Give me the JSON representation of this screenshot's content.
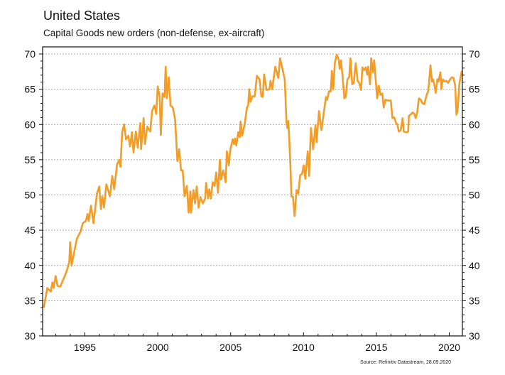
{
  "chart_data": {
    "type": "line",
    "title": "United States",
    "subtitle": "Capital Goods new orders (non-defense, ex-aircraft)",
    "xlabel": "",
    "ylabel": "",
    "source": "Source: Refinitiv Datastream, 28.09.2020",
    "xlim": [
      1992.1,
      2020.9
    ],
    "ylim": [
      30,
      70
    ],
    "x_ticks": [
      1995,
      2000,
      2005,
      2010,
      2015,
      2020
    ],
    "x_tick_labels": [
      "1995",
      "2000",
      "2005",
      "2010",
      "2015",
      "2020"
    ],
    "y_ticks": [
      30,
      35,
      40,
      45,
      50,
      55,
      60,
      65,
      70
    ],
    "y_tick_labels": [
      "30",
      "35",
      "40",
      "45",
      "50",
      "55",
      "60",
      "65",
      "70"
    ],
    "grid": "horizontal dashed",
    "legend": "none",
    "series": [
      {
        "name": "Capital Goods new orders (non-defense, ex-aircraft)",
        "color": "#f39c26",
        "points": [
          [
            1992.18,
            34.0
          ],
          [
            1992.42,
            36.8
          ],
          [
            1992.66,
            36.3
          ],
          [
            1992.77,
            37.6
          ],
          [
            1992.85,
            36.8
          ],
          [
            1992.99,
            38.5
          ],
          [
            1993.12,
            37.1
          ],
          [
            1993.31,
            37.0
          ],
          [
            1993.64,
            38.6
          ],
          [
            1993.8,
            39.5
          ],
          [
            1993.93,
            40.6
          ],
          [
            1993.99,
            43.3
          ],
          [
            1994.09,
            40.0
          ],
          [
            1994.26,
            41.8
          ],
          [
            1994.45,
            43.8
          ],
          [
            1994.7,
            44.8
          ],
          [
            1994.86,
            46.0
          ],
          [
            1995.07,
            46.3
          ],
          [
            1995.18,
            47.3
          ],
          [
            1995.26,
            46.3
          ],
          [
            1995.42,
            48.5
          ],
          [
            1995.59,
            46.0
          ],
          [
            1995.83,
            50.2
          ],
          [
            1995.99,
            51.2
          ],
          [
            1996.1,
            48.0
          ],
          [
            1996.2,
            49.8
          ],
          [
            1996.31,
            48.2
          ],
          [
            1996.47,
            51.5
          ],
          [
            1996.72,
            49.8
          ],
          [
            1996.88,
            52.7
          ],
          [
            1997.01,
            50.8
          ],
          [
            1997.2,
            54.3
          ],
          [
            1997.36,
            55.0
          ],
          [
            1997.44,
            54.0
          ],
          [
            1997.56,
            58.9
          ],
          [
            1997.69,
            60.0
          ],
          [
            1997.82,
            57.9
          ],
          [
            1997.98,
            58.4
          ],
          [
            1998.1,
            56.9
          ],
          [
            1998.23,
            58.9
          ],
          [
            1998.34,
            56.0
          ],
          [
            1998.5,
            59.0
          ],
          [
            1998.63,
            56.7
          ],
          [
            1998.8,
            60.2
          ],
          [
            1998.86,
            56.5
          ],
          [
            1999.03,
            60.9
          ],
          [
            1999.12,
            57.2
          ],
          [
            1999.28,
            59.7
          ],
          [
            1999.48,
            59.0
          ],
          [
            1999.61,
            61.9
          ],
          [
            1999.77,
            62.7
          ],
          [
            1999.89,
            61.5
          ],
          [
            2000.0,
            65.4
          ],
          [
            2000.13,
            63.9
          ],
          [
            2000.21,
            58.5
          ],
          [
            2000.33,
            64.4
          ],
          [
            2000.46,
            63.9
          ],
          [
            2000.54,
            68.2
          ],
          [
            2000.62,
            63.7
          ],
          [
            2000.75,
            66.7
          ],
          [
            2000.87,
            62.7
          ],
          [
            2001.03,
            62.4
          ],
          [
            2001.19,
            60.7
          ],
          [
            2001.35,
            54.8
          ],
          [
            2001.47,
            56.5
          ],
          [
            2001.6,
            53.5
          ],
          [
            2001.71,
            53.5
          ],
          [
            2001.84,
            49.8
          ],
          [
            2001.99,
            51.3
          ],
          [
            2002.12,
            47.5
          ],
          [
            2002.24,
            50.5
          ],
          [
            2002.28,
            47.5
          ],
          [
            2002.45,
            50.7
          ],
          [
            2002.56,
            48.8
          ],
          [
            2002.67,
            51.2
          ],
          [
            2002.8,
            48.2
          ],
          [
            2002.93,
            49.7
          ],
          [
            2003.09,
            48.8
          ],
          [
            2003.25,
            49.5
          ],
          [
            2003.32,
            51.7
          ],
          [
            2003.45,
            49.5
          ],
          [
            2003.53,
            50.8
          ],
          [
            2003.64,
            49.5
          ],
          [
            2003.77,
            51.8
          ],
          [
            2003.9,
            51.3
          ],
          [
            2004.01,
            53.2
          ],
          [
            2004.13,
            50.3
          ],
          [
            2004.26,
            55.0
          ],
          [
            2004.34,
            52.2
          ],
          [
            2004.5,
            53.5
          ],
          [
            2004.66,
            51.8
          ],
          [
            2004.74,
            56.2
          ],
          [
            2004.87,
            54.2
          ],
          [
            2004.98,
            56.5
          ],
          [
            2005.15,
            57.9
          ],
          [
            2005.23,
            57.2
          ],
          [
            2005.31,
            58.0
          ],
          [
            2005.39,
            57.0
          ],
          [
            2005.52,
            58.9
          ],
          [
            2005.63,
            58.2
          ],
          [
            2005.68,
            60.4
          ],
          [
            2005.79,
            58.4
          ],
          [
            2005.96,
            60.0
          ],
          [
            2006.12,
            62.4
          ],
          [
            2006.2,
            62.7
          ],
          [
            2006.28,
            65.0
          ],
          [
            2006.36,
            63.2
          ],
          [
            2006.49,
            64.0
          ],
          [
            2006.65,
            64.0
          ],
          [
            2006.8,
            66.9
          ],
          [
            2006.98,
            66.4
          ],
          [
            2007.11,
            64.0
          ],
          [
            2007.2,
            63.9
          ],
          [
            2007.3,
            67.1
          ],
          [
            2007.46,
            64.9
          ],
          [
            2007.66,
            65.0
          ],
          [
            2007.74,
            66.2
          ],
          [
            2007.85,
            65.0
          ],
          [
            2008.06,
            68.2
          ],
          [
            2008.27,
            66.6
          ],
          [
            2008.39,
            69.4
          ],
          [
            2008.55,
            67.9
          ],
          [
            2008.71,
            66.4
          ],
          [
            2008.83,
            60.5
          ],
          [
            2008.89,
            59.5
          ],
          [
            2008.96,
            60.5
          ],
          [
            2009.09,
            54.9
          ],
          [
            2009.17,
            49.8
          ],
          [
            2009.28,
            49.7
          ],
          [
            2009.39,
            47.0
          ],
          [
            2009.52,
            50.7
          ],
          [
            2009.64,
            50.2
          ],
          [
            2009.77,
            52.8
          ],
          [
            2009.9,
            53.0
          ],
          [
            2010.01,
            54.2
          ],
          [
            2010.12,
            52.3
          ],
          [
            2010.29,
            56.2
          ],
          [
            2010.38,
            52.7
          ],
          [
            2010.51,
            59.5
          ],
          [
            2010.66,
            56.5
          ],
          [
            2010.82,
            59.9
          ],
          [
            2010.9,
            57.5
          ],
          [
            2011.06,
            61.9
          ],
          [
            2011.23,
            59.2
          ],
          [
            2011.38,
            61.5
          ],
          [
            2011.54,
            63.9
          ],
          [
            2011.62,
            63.5
          ],
          [
            2011.75,
            64.7
          ],
          [
            2011.87,
            64.7
          ],
          [
            2011.95,
            67.6
          ],
          [
            2012.04,
            65.0
          ],
          [
            2012.15,
            68.7
          ],
          [
            2012.28,
            69.9
          ],
          [
            2012.41,
            69.2
          ],
          [
            2012.48,
            67.9
          ],
          [
            2012.57,
            69.1
          ],
          [
            2012.69,
            66.6
          ],
          [
            2012.8,
            63.7
          ],
          [
            2012.9,
            63.9
          ],
          [
            2013.01,
            66.4
          ],
          [
            2013.13,
            66.7
          ],
          [
            2013.22,
            69.4
          ],
          [
            2013.34,
            65.7
          ],
          [
            2013.45,
            65.9
          ],
          [
            2013.58,
            68.7
          ],
          [
            2013.71,
            66.2
          ],
          [
            2013.82,
            65.9
          ],
          [
            2013.95,
            64.9
          ],
          [
            2014.04,
            68.1
          ],
          [
            2014.15,
            67.7
          ],
          [
            2014.27,
            68.1
          ],
          [
            2014.37,
            67.1
          ],
          [
            2014.43,
            68.2
          ],
          [
            2014.56,
            65.7
          ],
          [
            2014.65,
            69.4
          ],
          [
            2014.76,
            67.4
          ],
          [
            2014.85,
            69.1
          ],
          [
            2014.97,
            65.9
          ],
          [
            2015.05,
            63.7
          ],
          [
            2015.16,
            65.5
          ],
          [
            2015.29,
            64.2
          ],
          [
            2015.41,
            64.4
          ],
          [
            2015.5,
            62.4
          ],
          [
            2015.62,
            63.5
          ],
          [
            2015.78,
            63.4
          ],
          [
            2015.99,
            63.4
          ],
          [
            2016.1,
            60.9
          ],
          [
            2016.22,
            61.0
          ],
          [
            2016.35,
            60.2
          ],
          [
            2016.44,
            60.0
          ],
          [
            2016.54,
            59.0
          ],
          [
            2016.67,
            59.2
          ],
          [
            2016.8,
            60.9
          ],
          [
            2016.88,
            59.0
          ],
          [
            2017.07,
            58.9
          ],
          [
            2017.18,
            59.0
          ],
          [
            2017.23,
            61.2
          ],
          [
            2017.4,
            61.5
          ],
          [
            2017.48,
            61.7
          ],
          [
            2017.61,
            61.5
          ],
          [
            2017.69,
            60.9
          ],
          [
            2017.8,
            61.7
          ],
          [
            2017.92,
            63.7
          ],
          [
            2018.05,
            63.5
          ],
          [
            2018.16,
            63.0
          ],
          [
            2018.29,
            62.9
          ],
          [
            2018.45,
            64.2
          ],
          [
            2018.55,
            64.7
          ],
          [
            2018.61,
            65.9
          ],
          [
            2018.71,
            68.4
          ],
          [
            2018.81,
            66.1
          ],
          [
            2018.89,
            66.4
          ],
          [
            2018.97,
            65.7
          ],
          [
            2019.07,
            64.5
          ],
          [
            2019.18,
            66.4
          ],
          [
            2019.26,
            66.1
          ],
          [
            2019.39,
            67.4
          ],
          [
            2019.46,
            65.0
          ],
          [
            2019.56,
            66.4
          ],
          [
            2019.67,
            66.1
          ],
          [
            2019.79,
            66.2
          ],
          [
            2019.92,
            65.9
          ],
          [
            2020.05,
            66.4
          ],
          [
            2020.18,
            66.7
          ],
          [
            2020.29,
            66.6
          ],
          [
            2020.41,
            65.5
          ],
          [
            2020.49,
            61.4
          ],
          [
            2020.57,
            61.9
          ],
          [
            2020.7,
            65.9
          ],
          [
            2020.86,
            67.6
          ]
        ]
      }
    ]
  }
}
